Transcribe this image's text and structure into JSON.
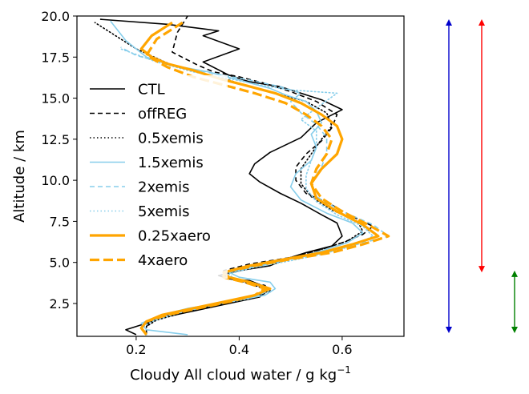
{
  "chart_data": {
    "type": "line",
    "xlabel": "Cloudy All cloud water / g kg",
    "xlabel_superscript": "−1",
    "ylabel": "Altitude / km",
    "xlim": [
      0.085,
      0.72
    ],
    "ylim": [
      0.5,
      20.0
    ],
    "xticks": [
      0.2,
      0.4,
      0.6
    ],
    "xtick_labels": [
      "0.2",
      "0.4",
      "0.6"
    ],
    "yticks": [
      2.5,
      5.0,
      7.5,
      10.0,
      12.5,
      15.0,
      17.5,
      20.0
    ],
    "ytick_labels": [
      "2.5",
      "5.0",
      "7.5",
      "10.0",
      "12.5",
      "15.0",
      "17.5",
      "20.0"
    ],
    "grid": false,
    "legend_position": "left",
    "series": [
      {
        "name": "CTL",
        "color": "#000000",
        "style": "solid",
        "width": 1.6,
        "x": [
          0.2,
          0.18,
          0.22,
          0.26,
          0.32,
          0.38,
          0.44,
          0.46,
          0.42,
          0.38,
          0.36,
          0.4,
          0.46,
          0.5,
          0.53,
          0.58,
          0.6,
          0.59,
          0.56,
          0.52,
          0.48,
          0.44,
          0.42,
          0.43,
          0.46,
          0.52,
          0.55,
          0.6,
          0.56,
          0.52,
          0.48,
          0.42,
          0.38,
          0.33,
          0.4,
          0.33,
          0.36,
          0.26,
          0.13
        ],
        "y": [
          0.6,
          0.9,
          1.3,
          1.7,
          2.1,
          2.5,
          2.9,
          3.4,
          3.9,
          4.0,
          4.2,
          4.5,
          4.8,
          5.3,
          5.6,
          6.0,
          6.6,
          7.4,
          7.9,
          8.6,
          9.2,
          9.9,
          10.4,
          11.0,
          11.7,
          12.6,
          13.5,
          14.3,
          14.9,
          15.3,
          15.7,
          16.0,
          16.4,
          17.2,
          18.0,
          18.8,
          19.1,
          19.5,
          19.8
        ]
      },
      {
        "name": "offREG",
        "color": "#000000",
        "style": "dashed",
        "width": 1.6,
        "x": [
          0.22,
          0.22,
          0.23,
          0.27,
          0.34,
          0.4,
          0.46,
          0.45,
          0.4,
          0.37,
          0.37,
          0.42,
          0.5,
          0.55,
          0.6,
          0.64,
          0.66,
          0.62,
          0.58,
          0.53,
          0.51,
          0.51,
          0.53,
          0.56,
          0.58,
          0.59,
          0.55,
          0.5,
          0.45,
          0.4,
          0.35,
          0.32,
          0.27,
          0.28,
          0.3
        ],
        "y": [
          0.6,
          1.1,
          1.5,
          1.9,
          2.3,
          2.7,
          3.2,
          3.6,
          3.9,
          4.2,
          4.5,
          4.9,
          5.3,
          5.7,
          6.2,
          6.7,
          7.2,
          7.8,
          8.5,
          9.2,
          10.0,
          10.8,
          11.6,
          12.4,
          13.2,
          14.0,
          14.8,
          15.4,
          15.9,
          16.3,
          16.6,
          17.0,
          17.8,
          19.0,
          20.0
        ]
      },
      {
        "name": "0.5xemis",
        "color": "#000000",
        "style": "dotted",
        "width": 1.6,
        "x": [
          0.22,
          0.22,
          0.24,
          0.3,
          0.37,
          0.43,
          0.46,
          0.41,
          0.37,
          0.38,
          0.44,
          0.5,
          0.56,
          0.61,
          0.64,
          0.63,
          0.58,
          0.54,
          0.52,
          0.52,
          0.54,
          0.56,
          0.58,
          0.57,
          0.53,
          0.47,
          0.42,
          0.38,
          0.33,
          0.27,
          0.2,
          0.12
        ],
        "y": [
          0.6,
          1.1,
          1.5,
          2.0,
          2.5,
          2.9,
          3.3,
          3.8,
          4.1,
          4.4,
          4.9,
          5.3,
          5.8,
          6.3,
          6.9,
          7.5,
          8.2,
          9.0,
          9.8,
          10.7,
          11.6,
          12.5,
          13.3,
          14.1,
          14.8,
          15.3,
          15.7,
          16.1,
          16.5,
          17.0,
          18.0,
          19.6
        ]
      },
      {
        "name": "1.5xemis",
        "color": "#87ceeb",
        "style": "solid",
        "width": 1.6,
        "x": [
          0.3,
          0.22,
          0.21,
          0.25,
          0.3,
          0.38,
          0.45,
          0.47,
          0.46,
          0.4,
          0.38,
          0.44,
          0.5,
          0.56,
          0.61,
          0.64,
          0.62,
          0.57,
          0.52,
          0.5,
          0.51,
          0.54,
          0.55,
          0.54,
          0.56,
          0.55,
          0.53,
          0.49,
          0.46,
          0.4,
          0.34,
          0.27,
          0.22,
          0.18,
          0.15
        ],
        "y": [
          0.6,
          0.9,
          1.3,
          1.8,
          2.2,
          2.6,
          3.0,
          3.4,
          3.8,
          4.1,
          4.4,
          4.8,
          5.2,
          5.7,
          6.2,
          6.8,
          7.4,
          8.0,
          8.8,
          9.6,
          10.4,
          11.2,
          12.0,
          12.8,
          13.5,
          14.2,
          14.8,
          15.2,
          15.6,
          16.1,
          16.6,
          17.0,
          17.5,
          18.5,
          19.7
        ]
      },
      {
        "name": "2xemis",
        "color": "#87ceeb",
        "style": "dashed",
        "width": 1.6,
        "x": [
          0.22,
          0.21,
          0.22,
          0.26,
          0.32,
          0.38,
          0.44,
          0.46,
          0.42,
          0.38,
          0.37,
          0.42,
          0.5,
          0.57,
          0.63,
          0.69,
          0.66,
          0.6,
          0.55,
          0.54,
          0.56,
          0.57,
          0.57,
          0.55,
          0.52,
          0.5,
          0.52,
          0.48,
          0.42,
          0.35,
          0.27,
          0.2,
          0.17
        ],
        "y": [
          0.6,
          1.0,
          1.4,
          1.8,
          2.2,
          2.6,
          3.0,
          3.4,
          3.8,
          4.1,
          4.4,
          4.8,
          5.2,
          5.6,
          6.1,
          6.6,
          7.3,
          8.1,
          9.0,
          9.9,
          10.8,
          11.7,
          12.6,
          13.4,
          14.1,
          14.8,
          15.3,
          15.7,
          16.1,
          16.5,
          17.0,
          17.6,
          18.1
        ]
      },
      {
        "name": "5xemis",
        "color": "#87ceeb",
        "style": "dotted",
        "width": 1.6,
        "x": [
          0.22,
          0.21,
          0.23,
          0.28,
          0.35,
          0.42,
          0.46,
          0.43,
          0.39,
          0.38,
          0.43,
          0.5,
          0.56,
          0.62,
          0.66,
          0.64,
          0.59,
          0.55,
          0.53,
          0.53,
          0.54,
          0.55,
          0.55,
          0.52,
          0.55,
          0.59,
          0.5,
          0.44,
          0.38,
          0.31,
          0.24,
          0.17
        ],
        "y": [
          0.6,
          1.0,
          1.4,
          1.9,
          2.4,
          2.8,
          3.3,
          3.7,
          4.0,
          4.3,
          4.7,
          5.1,
          5.5,
          6.0,
          6.6,
          7.2,
          7.9,
          8.7,
          9.5,
          10.3,
          11.2,
          12.1,
          13.0,
          13.7,
          14.4,
          15.3,
          15.5,
          15.8,
          16.2,
          16.6,
          17.2,
          18.0
        ]
      },
      {
        "name": "0.25xaero",
        "color": "#ffa500",
        "style": "solid",
        "width": 3.2,
        "x": [
          0.22,
          0.21,
          0.22,
          0.25,
          0.31,
          0.37,
          0.43,
          0.46,
          0.42,
          0.38,
          0.37,
          0.42,
          0.49,
          0.56,
          0.62,
          0.67,
          0.64,
          0.59,
          0.55,
          0.54,
          0.56,
          0.59,
          0.6,
          0.59,
          0.56,
          0.52,
          0.47,
          0.41,
          0.36,
          0.31,
          0.26,
          0.23,
          0.21,
          0.23,
          0.27
        ],
        "y": [
          0.6,
          1.0,
          1.4,
          1.8,
          2.2,
          2.6,
          3.0,
          3.4,
          3.8,
          4.1,
          4.4,
          4.8,
          5.2,
          5.6,
          6.1,
          6.6,
          7.3,
          8.1,
          8.9,
          9.8,
          10.7,
          11.6,
          12.5,
          13.3,
          14.0,
          14.7,
          15.3,
          15.8,
          16.2,
          16.7,
          17.1,
          17.5,
          18.0,
          18.8,
          19.6
        ]
      },
      {
        "name": "4xaero",
        "color": "#ffa500",
        "style": "dashed",
        "width": 3.2,
        "x": [
          0.22,
          0.21,
          0.22,
          0.26,
          0.32,
          0.38,
          0.43,
          0.45,
          0.41,
          0.37,
          0.37,
          0.43,
          0.5,
          0.58,
          0.64,
          0.69,
          0.65,
          0.6,
          0.56,
          0.54,
          0.55,
          0.57,
          0.58,
          0.56,
          0.53,
          0.49,
          0.43,
          0.37,
          0.31,
          0.26,
          0.22,
          0.24,
          0.29
        ],
        "y": [
          0.6,
          1.0,
          1.4,
          1.8,
          2.2,
          2.6,
          3.0,
          3.4,
          3.8,
          4.1,
          4.4,
          4.8,
          5.2,
          5.6,
          6.1,
          6.6,
          7.3,
          8.1,
          8.9,
          9.8,
          10.7,
          11.6,
          12.5,
          13.3,
          14.0,
          14.7,
          15.3,
          15.8,
          16.3,
          16.9,
          17.6,
          18.6,
          19.6
        ]
      }
    ],
    "range_arrows": [
      {
        "color": "#0000cc",
        "from": 0.5,
        "to": 20.0
      },
      {
        "color": "#ff0000",
        "from": 4.2,
        "to": 20.0
      },
      {
        "color": "#008000",
        "from": 0.5,
        "to": 4.7
      }
    ]
  }
}
